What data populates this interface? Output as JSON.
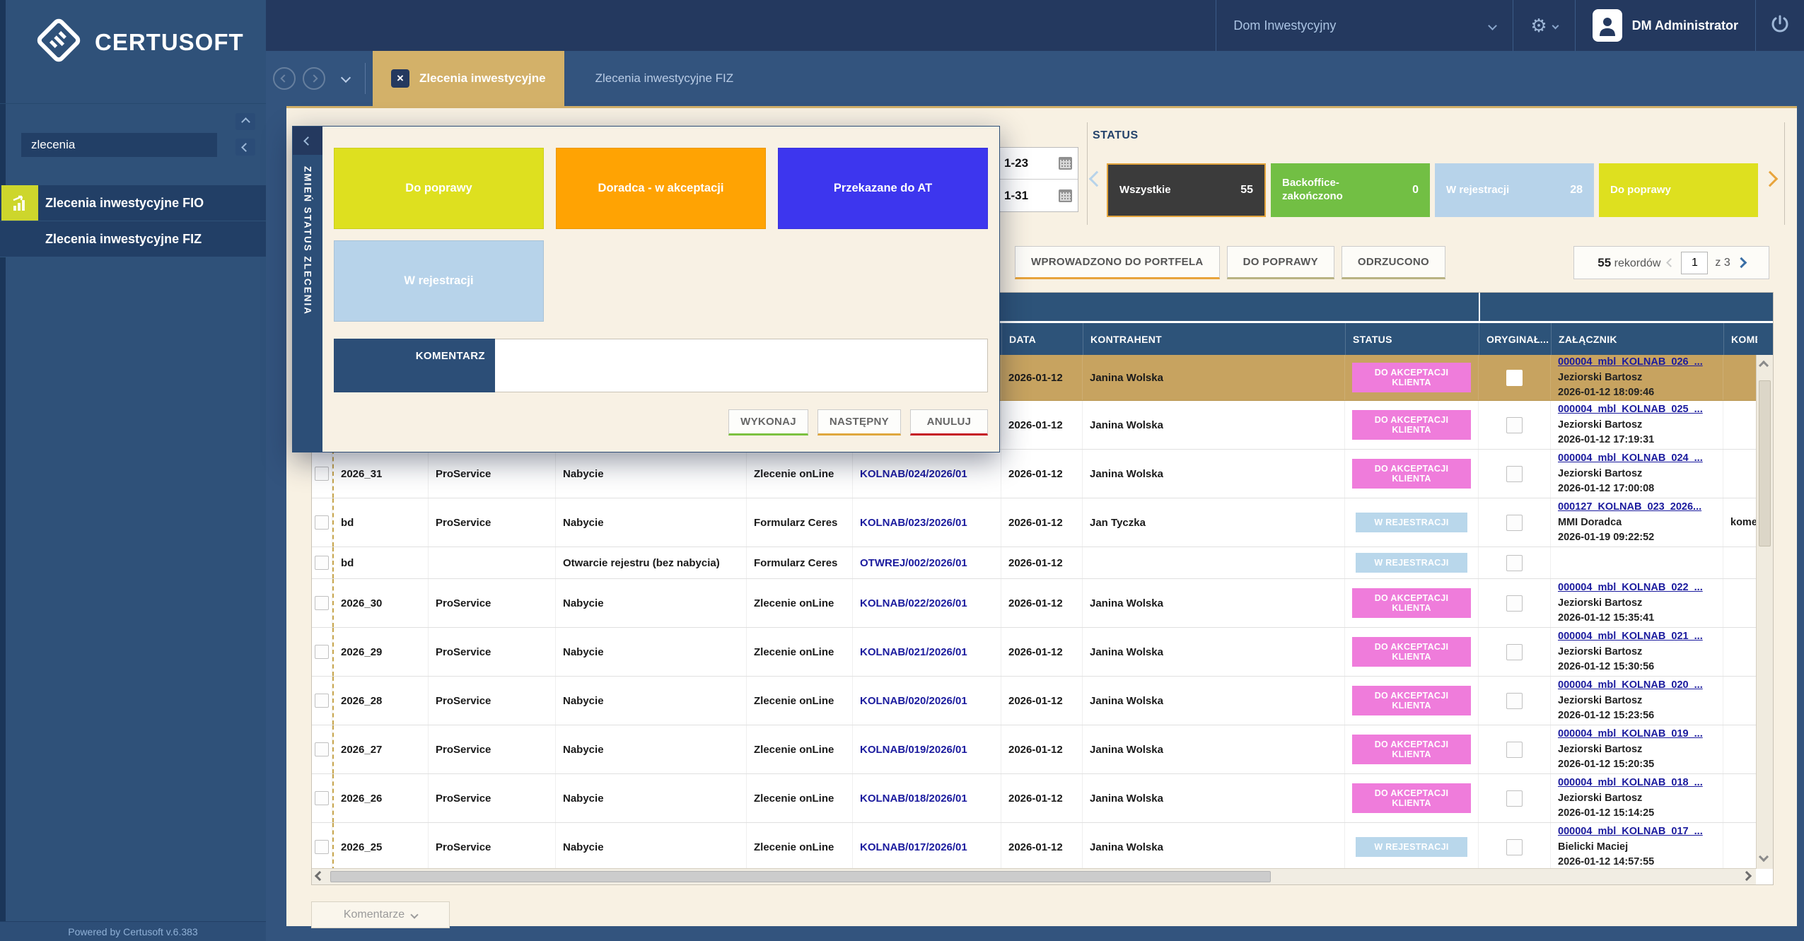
{
  "theme": {
    "badge_pink": "#ef7cdb",
    "badge_blue": "#b9d7eb",
    "accent_gold": "#d3b169",
    "selected_row": "#c7a360"
  },
  "sidebar": {
    "logo_text": "CERTUSOFT",
    "search_value": "zlecenia",
    "items": [
      {
        "label": "Zlecenia inwestycyjne FIO"
      },
      {
        "label": "Zlecenia inwestycyjne FIZ"
      }
    ],
    "footer": "Powered by Certusoft v.6.383"
  },
  "header": {
    "company": "Dom Inwestycyjny",
    "user": "DM Administrator"
  },
  "tabs": [
    {
      "label": "Zlecenia inwestycyjne"
    },
    {
      "label": "Zlecenia inwestycyjne FIZ"
    }
  ],
  "filters": {
    "date_from": "1-23",
    "date_to": "1-31"
  },
  "status_section": {
    "title": "STATUS",
    "cards": [
      {
        "label": "Wszystkie",
        "count": "55",
        "color": "#3b3b3b",
        "selected": true
      },
      {
        "label": "Backoffice-zakończono",
        "count": "0",
        "color": "#72bf44",
        "selected": false
      },
      {
        "label": "W rejestracji",
        "count": "28",
        "color": "#b7d3ea",
        "selected": false
      },
      {
        "label": "Do poprawy",
        "count": "",
        "color": "#dee01f",
        "selected": false
      }
    ]
  },
  "actions": {
    "buttons": [
      {
        "label": "WPROWADZONO DO PORTFELA",
        "underline": "#e8a43c"
      },
      {
        "label": "DO POPRAWY",
        "underline": "#b9b383"
      },
      {
        "label": "ODRZUCONO",
        "underline": "#b9b383"
      }
    ],
    "records_count": "55",
    "records_label": "rekordów",
    "page_value": "1",
    "page_of": "z 3"
  },
  "modal": {
    "side_title": "ZMIEŃ STATUS ZLECENIA",
    "status_buttons": [
      {
        "label": "Do poprawy",
        "color": "#dee01f"
      },
      {
        "label": "Doradca - w akceptacji",
        "color": "#ffa303"
      },
      {
        "label": "Przekazane do AT",
        "color": "#3d36ee"
      },
      {
        "label": "W rejestracji",
        "color": "#b7d3ea"
      }
    ],
    "comment_label": "KOMENTARZ",
    "comment_value": "",
    "footer_buttons": [
      {
        "label": "WYKONAJ",
        "underline": "#7cc140"
      },
      {
        "label": "NASTĘPNY",
        "underline": "#dfa73d"
      },
      {
        "label": "ANULUJ",
        "underline": "#c51224"
      }
    ]
  },
  "table": {
    "headers": [
      "",
      "",
      "",
      "",
      "",
      "",
      "DATA",
      "KONTRAHENT",
      "STATUS",
      "ORYGINAŁ...",
      "ZAŁĄCZNIK",
      "KOME"
    ],
    "rows": [
      {
        "num": "",
        "agent": "",
        "type": "",
        "form": "",
        "link": "",
        "date": "2026-01-12",
        "contractor": "Janina Wolska",
        "status": "DO AKCEPTACJI KLIENTA",
        "status_type": "pink",
        "att_file": "000004_mbl_KOLNAB_026_...",
        "att_person": "Jeziorski Bartosz",
        "att_time": "2026-01-12 18:09:46",
        "comment": "",
        "selected": true
      },
      {
        "num": "",
        "agent": "",
        "type": "",
        "form": "",
        "link": "",
        "date": "2026-01-12",
        "contractor": "Janina Wolska",
        "status": "DO AKCEPTACJI KLIENTA",
        "status_type": "pink",
        "att_file": "000004_mbl_KOLNAB_025_...",
        "att_person": "Jeziorski Bartosz",
        "att_time": "2026-01-12 17:19:31",
        "comment": "",
        "selected": false
      },
      {
        "num": "2026_31",
        "agent": "ProService",
        "type": "Nabycie",
        "form": "Zlecenie onLine",
        "link": "KOLNAB/024/2026/01",
        "date": "2026-01-12",
        "contractor": "Janina Wolska",
        "status": "DO AKCEPTACJI KLIENTA",
        "status_type": "pink",
        "att_file": "000004_mbl_KOLNAB_024_...",
        "att_person": "Jeziorski Bartosz",
        "att_time": "2026-01-12 17:00:08",
        "comment": "",
        "selected": false
      },
      {
        "num": "bd",
        "agent": "ProService",
        "type": "Nabycie",
        "form": "Formularz Ceres",
        "link": "KOLNAB/023/2026/01",
        "date": "2026-01-12",
        "contractor": "Jan Tyczka",
        "status": "W REJESTRACJI",
        "status_type": "blue",
        "att_file": "000127_KOLNAB_023_2026...",
        "att_person": "MMI Doradca",
        "att_time": "2026-01-19 09:22:52",
        "comment": "kome",
        "selected": false
      },
      {
        "num": "bd",
        "agent": "",
        "type": "Otwarcie rejestru (bez nabycia)",
        "form": "Formularz Ceres",
        "link": "OTWREJ/002/2026/01",
        "date": "2026-01-12",
        "contractor": "",
        "status": "W REJESTRACJI",
        "status_type": "blue",
        "att_file": "",
        "att_person": "",
        "att_time": "",
        "comment": "",
        "selected": false
      },
      {
        "num": "2026_30",
        "agent": "ProService",
        "type": "Nabycie",
        "form": "Zlecenie onLine",
        "link": "KOLNAB/022/2026/01",
        "date": "2026-01-12",
        "contractor": "Janina Wolska",
        "status": "DO AKCEPTACJI KLIENTA",
        "status_type": "pink",
        "att_file": "000004_mbl_KOLNAB_022_...",
        "att_person": "Jeziorski Bartosz",
        "att_time": "2026-01-12 15:35:41",
        "comment": "",
        "selected": false
      },
      {
        "num": "2026_29",
        "agent": "ProService",
        "type": "Nabycie",
        "form": "Zlecenie onLine",
        "link": "KOLNAB/021/2026/01",
        "date": "2026-01-12",
        "contractor": "Janina Wolska",
        "status": "DO AKCEPTACJI KLIENTA",
        "status_type": "pink",
        "att_file": "000004_mbl_KOLNAB_021_...",
        "att_person": "Jeziorski Bartosz",
        "att_time": "2026-01-12 15:30:56",
        "comment": "",
        "selected": false
      },
      {
        "num": "2026_28",
        "agent": "ProService",
        "type": "Nabycie",
        "form": "Zlecenie onLine",
        "link": "KOLNAB/020/2026/01",
        "date": "2026-01-12",
        "contractor": "Janina Wolska",
        "status": "DO AKCEPTACJI KLIENTA",
        "status_type": "pink",
        "att_file": "000004_mbl_KOLNAB_020_...",
        "att_person": "Jeziorski Bartosz",
        "att_time": "2026-01-12 15:23:56",
        "comment": "",
        "selected": false
      },
      {
        "num": "2026_27",
        "agent": "ProService",
        "type": "Nabycie",
        "form": "Zlecenie onLine",
        "link": "KOLNAB/019/2026/01",
        "date": "2026-01-12",
        "contractor": "Janina Wolska",
        "status": "DO AKCEPTACJI KLIENTA",
        "status_type": "pink",
        "att_file": "000004_mbl_KOLNAB_019_...",
        "att_person": "Jeziorski Bartosz",
        "att_time": "2026-01-12 15:20:35",
        "comment": "",
        "selected": false
      },
      {
        "num": "2026_26",
        "agent": "ProService",
        "type": "Nabycie",
        "form": "Zlecenie onLine",
        "link": "KOLNAB/018/2026/01",
        "date": "2026-01-12",
        "contractor": "Janina Wolska",
        "status": "DO AKCEPTACJI KLIENTA",
        "status_type": "pink",
        "att_file": "000004_mbl_KOLNAB_018_...",
        "att_person": "Jeziorski Bartosz",
        "att_time": "2026-01-12 15:14:25",
        "comment": "",
        "selected": false
      },
      {
        "num": "2026_25",
        "agent": "ProService",
        "type": "Nabycie",
        "form": "Zlecenie onLine",
        "link": "KOLNAB/017/2026/01",
        "date": "2026-01-12",
        "contractor": "Janina Wolska",
        "status": "W REJESTRACJI",
        "status_type": "blue",
        "att_file": "000004_mbl_KOLNAB_017_...",
        "att_person": "Bielicki Maciej",
        "att_time": "2026-01-12 14:57:55",
        "comment": "",
        "selected": false
      }
    ]
  },
  "footer_bar": {
    "comments_label": "Komentarze"
  }
}
